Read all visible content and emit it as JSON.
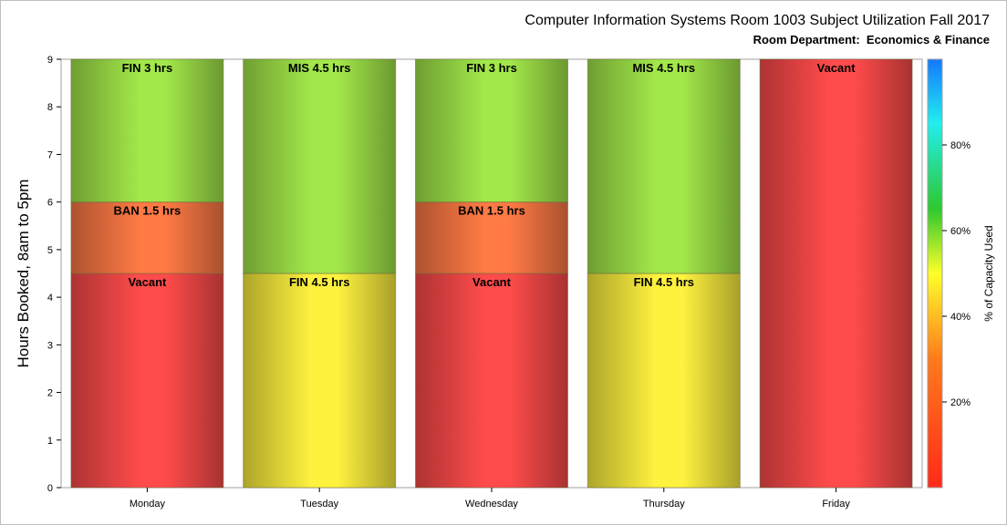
{
  "chart_data": {
    "type": "bar",
    "stacked": true,
    "title": "Computer Information Systems Room 1003 Subject Utilization Fall 2017",
    "subtitle": "Room Department:  Economics & Finance",
    "ylabel": "Hours Booked, 8am to 5pm",
    "ylim": [
      0,
      9
    ],
    "yticks": [
      0,
      1,
      2,
      3,
      4,
      5,
      6,
      7,
      8,
      9
    ],
    "categories": [
      "Monday",
      "Tuesday",
      "Wednesday",
      "Thursday",
      "Friday"
    ],
    "bars": [
      {
        "day": "Monday",
        "segments": [
          {
            "label": "Vacant",
            "hours": 4.5,
            "color": "#ff4b4b"
          },
          {
            "label": "BAN 1.5 hrs",
            "hours": 1.5,
            "color": "#ff7a45"
          },
          {
            "label": "FIN 3 hrs",
            "hours": 3,
            "color": "#a3e84a"
          }
        ]
      },
      {
        "day": "Tuesday",
        "segments": [
          {
            "label": "FIN 4.5 hrs",
            "hours": 4.5,
            "color": "#fff23f"
          },
          {
            "label": "MIS 4.5 hrs",
            "hours": 4.5,
            "color": "#a3e84a"
          }
        ]
      },
      {
        "day": "Wednesday",
        "segments": [
          {
            "label": "Vacant",
            "hours": 4.5,
            "color": "#ff4b4b"
          },
          {
            "label": "BAN 1.5 hrs",
            "hours": 1.5,
            "color": "#ff7a45"
          },
          {
            "label": "FIN 3 hrs",
            "hours": 3,
            "color": "#a3e84a"
          }
        ]
      },
      {
        "day": "Thursday",
        "segments": [
          {
            "label": "FIN 4.5 hrs",
            "hours": 4.5,
            "color": "#fff23f"
          },
          {
            "label": "MIS 4.5 hrs",
            "hours": 4.5,
            "color": "#a3e84a"
          }
        ]
      },
      {
        "day": "Friday",
        "segments": [
          {
            "label": "Vacant",
            "hours": 9,
            "color": "#ff4b4b"
          }
        ]
      }
    ],
    "colorbar": {
      "label": "% of Capacity Used",
      "range": [
        0,
        100
      ],
      "ticks": [
        20,
        40,
        60,
        80
      ],
      "tick_labels": [
        "20%",
        "40%",
        "60%",
        "80%"
      ]
    }
  }
}
